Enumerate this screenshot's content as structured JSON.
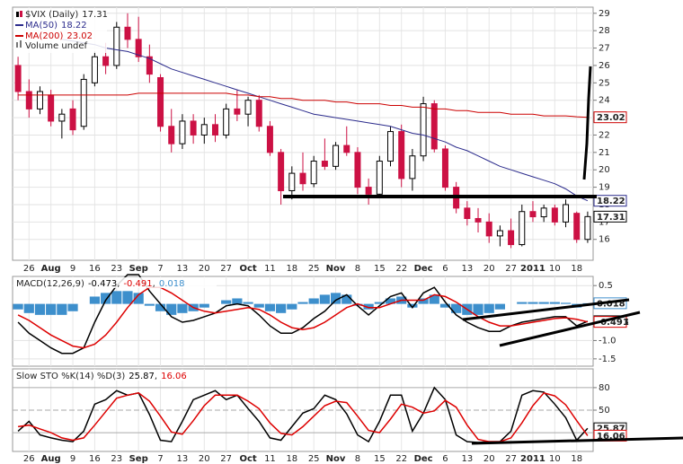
{
  "chart_data": [
    {
      "type": "candlestick",
      "title": "$VIX (Daily)",
      "last_label": "17.31",
      "volume_label": "Volume undef",
      "categories": [
        null,
        "26",
        null,
        "Aug",
        null,
        "9",
        null,
        "16",
        null,
        "23",
        null,
        "Sep",
        null,
        "7",
        null,
        "13",
        null,
        "20",
        null,
        "27",
        null,
        "Oct",
        null,
        "11",
        null,
        "18",
        null,
        "25",
        null,
        "Nov",
        null,
        "8",
        null,
        "15",
        null,
        "22",
        null,
        "Dec",
        null,
        "6",
        null,
        "13",
        null,
        "20",
        null,
        "27",
        null,
        "2011",
        null,
        "10",
        null,
        "18",
        null
      ],
      "open": [
        26.0,
        24.5,
        23.5,
        24.3,
        22.8,
        23.5,
        22.5,
        25.0,
        26.5,
        26.0,
        28.2,
        27.5,
        26.5,
        25.3,
        22.5,
        21.5,
        22.8,
        22.0,
        22.6,
        22.0,
        23.5,
        23.2,
        24.0,
        22.5,
        21.0,
        18.8,
        19.8,
        19.2,
        20.5,
        20.2,
        21.4,
        21.0,
        19.0,
        18.6,
        20.5,
        22.2,
        19.5,
        20.8,
        23.8,
        21.2,
        19.0,
        17.8,
        17.2,
        17.0,
        16.2,
        16.5,
        15.7,
        17.6,
        17.3,
        17.8,
        17.0,
        17.5,
        16.0
      ],
      "high": [
        26.5,
        25.2,
        24.8,
        24.6,
        23.5,
        24.0,
        25.5,
        26.8,
        27.3,
        28.5,
        29.0,
        28.8,
        27.2,
        25.5,
        23.5,
        23.2,
        23.2,
        23.0,
        23.2,
        23.8,
        24.6,
        24.2,
        24.3,
        22.8,
        21.2,
        20.2,
        21.0,
        20.8,
        21.8,
        21.6,
        22.5,
        21.3,
        19.5,
        20.8,
        22.5,
        22.6,
        21.2,
        24.2,
        24.0,
        21.4,
        19.3,
        18.2,
        17.8,
        17.5,
        16.8,
        17.2,
        18.0,
        18.2,
        18.0,
        18.0,
        18.3,
        17.6,
        17.6
      ],
      "low": [
        24.0,
        23.0,
        23.2,
        22.5,
        21.8,
        22.0,
        22.3,
        24.8,
        25.5,
        25.8,
        27.0,
        26.2,
        25.0,
        22.2,
        21.0,
        21.2,
        21.5,
        21.5,
        21.6,
        21.8,
        22.8,
        22.5,
        22.2,
        20.8,
        18.0,
        18.3,
        18.8,
        19.0,
        20.0,
        20.0,
        20.8,
        18.6,
        18.0,
        18.5,
        20.2,
        19.0,
        18.8,
        20.5,
        21.0,
        18.8,
        17.5,
        16.8,
        16.4,
        15.8,
        15.6,
        15.5,
        15.6,
        17.0,
        17.0,
        16.8,
        16.7,
        15.8,
        15.8
      ],
      "close": [
        24.5,
        23.5,
        24.5,
        22.8,
        23.2,
        22.3,
        25.2,
        26.5,
        26.0,
        28.2,
        27.5,
        26.5,
        25.5,
        22.5,
        21.5,
        22.8,
        22.0,
        22.6,
        22.0,
        23.5,
        23.2,
        24.0,
        22.5,
        21.0,
        18.8,
        19.8,
        19.2,
        20.5,
        20.2,
        21.4,
        21.0,
        19.0,
        18.6,
        20.5,
        22.2,
        19.5,
        20.8,
        23.8,
        21.2,
        19.0,
        17.8,
        17.2,
        17.0,
        16.2,
        16.5,
        15.7,
        17.6,
        17.3,
        17.8,
        17.0,
        18.0,
        16.0,
        17.31
      ],
      "up_color": "#000000",
      "down_color": "#cc1144",
      "series": [
        {
          "name": "MA(50)",
          "last_label": "18.22",
          "color": "#2b2b8c",
          "values": [
            null,
            null,
            null,
            null,
            27.5,
            27.4,
            27.3,
            27.2,
            27.0,
            26.9,
            26.8,
            26.6,
            26.4,
            26.1,
            25.8,
            25.6,
            25.4,
            25.2,
            25.0,
            24.8,
            24.6,
            24.4,
            24.2,
            24.0,
            23.8,
            23.6,
            23.4,
            23.2,
            23.1,
            23.0,
            22.9,
            22.8,
            22.7,
            22.6,
            22.5,
            22.3,
            22.1,
            22.0,
            21.8,
            21.6,
            21.3,
            21.1,
            20.8,
            20.5,
            20.2,
            20.0,
            19.8,
            19.6,
            19.4,
            19.2,
            18.9,
            18.5,
            18.22
          ]
        },
        {
          "name": "MA(200)",
          "last_label": "23.02",
          "color": "#cc0000",
          "values": [
            24.3,
            24.3,
            24.3,
            24.3,
            24.3,
            24.3,
            24.3,
            24.3,
            24.3,
            24.3,
            24.3,
            24.4,
            24.4,
            24.4,
            24.4,
            24.4,
            24.4,
            24.4,
            24.4,
            24.4,
            24.3,
            24.3,
            24.2,
            24.2,
            24.1,
            24.1,
            24.0,
            24.0,
            24.0,
            23.9,
            23.9,
            23.8,
            23.8,
            23.8,
            23.7,
            23.7,
            23.6,
            23.6,
            23.5,
            23.5,
            23.4,
            23.4,
            23.3,
            23.3,
            23.3,
            23.2,
            23.2,
            23.2,
            23.1,
            23.1,
            23.1,
            23.05,
            23.02
          ]
        }
      ],
      "ylim": [
        14.8,
        29.35
      ],
      "yticks": [
        16,
        17,
        18,
        19,
        20,
        21,
        22,
        23,
        24,
        25,
        26,
        27,
        28,
        29
      ],
      "grid": true
    },
    {
      "type": "combo",
      "title": "MACD(12,26,9)",
      "separator": ",",
      "series": [
        {
          "kind": "line",
          "color": "#000000",
          "last_label": "-0.473",
          "values": [
            -0.5,
            -0.8,
            -1.0,
            -1.2,
            -1.35,
            -1.35,
            -1.2,
            -0.5,
            0.1,
            0.5,
            0.8,
            0.8,
            0.35,
            0.0,
            -0.35,
            -0.5,
            -0.45,
            -0.35,
            -0.25,
            -0.05,
            0.0,
            -0.05,
            -0.3,
            -0.6,
            -0.8,
            -0.8,
            -0.65,
            -0.4,
            -0.2,
            0.1,
            0.25,
            -0.05,
            -0.3,
            -0.05,
            0.2,
            0.3,
            -0.1,
            0.3,
            0.45,
            0.05,
            -0.3,
            -0.5,
            -0.65,
            -0.75,
            -0.75,
            -0.6,
            -0.5,
            -0.45,
            -0.4,
            -0.35,
            -0.35,
            -0.6,
            -0.473
          ]
        },
        {
          "kind": "line",
          "color": "#dd0000",
          "last_label": "-0.491",
          "values": [
            -0.3,
            -0.45,
            -0.65,
            -0.85,
            -1.0,
            -1.15,
            -1.2,
            -1.1,
            -0.85,
            -0.5,
            -0.1,
            0.25,
            0.45,
            0.45,
            0.3,
            0.1,
            -0.1,
            -0.2,
            -0.25,
            -0.2,
            -0.15,
            -0.1,
            -0.15,
            -0.3,
            -0.5,
            -0.65,
            -0.7,
            -0.65,
            -0.5,
            -0.3,
            -0.1,
            0.0,
            -0.1,
            -0.1,
            0.0,
            0.1,
            0.1,
            0.1,
            0.25,
            0.2,
            0.05,
            -0.15,
            -0.35,
            -0.5,
            -0.6,
            -0.6,
            -0.55,
            -0.5,
            -0.45,
            -0.4,
            -0.38,
            -0.42,
            -0.491
          ]
        },
        {
          "kind": "bar",
          "color": "#3d8fcc",
          "last_label": "0.018",
          "values": [
            -0.15,
            -0.25,
            -0.3,
            -0.3,
            -0.3,
            -0.2,
            0.0,
            0.2,
            0.3,
            0.35,
            0.35,
            0.3,
            -0.05,
            -0.2,
            -0.3,
            -0.25,
            -0.2,
            -0.1,
            0.0,
            0.1,
            0.15,
            0.05,
            -0.1,
            -0.2,
            -0.25,
            -0.15,
            0.05,
            0.15,
            0.25,
            0.3,
            0.25,
            -0.05,
            -0.15,
            0.05,
            0.15,
            0.2,
            -0.1,
            0.15,
            0.25,
            -0.1,
            -0.25,
            -0.3,
            -0.3,
            -0.25,
            -0.15,
            0.0,
            0.05,
            0.05,
            0.05,
            0.05,
            0.03,
            -0.1,
            0.018
          ]
        }
      ],
      "ylim": [
        -1.7,
        0.75
      ],
      "yticks": [
        0.5,
        {
          "value": -1,
          "label": "-1.0"
        },
        -1.5
      ],
      "grid": true
    },
    {
      "type": "line",
      "title": "Slow STO %K(14) %D(3)",
      "separator": ",",
      "categories": [
        null,
        "26",
        null,
        "Aug",
        null,
        "9",
        null,
        "16",
        null,
        "23",
        null,
        "Sep",
        null,
        "7",
        null,
        "13",
        null,
        "20",
        null,
        "27",
        null,
        "Oct",
        null,
        "11",
        null,
        "18",
        null,
        "25",
        null,
        "Nov",
        null,
        "8",
        null,
        "15",
        null,
        "22",
        null,
        "Dec",
        null,
        "6",
        null,
        "13",
        null,
        "20",
        null,
        "27",
        null,
        "2011",
        null,
        "10",
        null,
        "18",
        null
      ],
      "series": [
        {
          "color": "#000000",
          "last_label": "25.87",
          "values": [
            22,
            35,
            17,
            13,
            10,
            8,
            22,
            58,
            64,
            76,
            70,
            73,
            44,
            10,
            8,
            35,
            64,
            70,
            76,
            64,
            70,
            52,
            35,
            13,
            10,
            28,
            46,
            52,
            70,
            64,
            45,
            17,
            8,
            35,
            70,
            70,
            22,
            46,
            80,
            64,
            17,
            8,
            7,
            8,
            8,
            22,
            70,
            76,
            74,
            58,
            40,
            10,
            25.87
          ]
        },
        {
          "color": "#dd0000",
          "last_label": "16.06",
          "values": [
            28,
            30,
            25,
            20,
            13,
            10,
            13,
            30,
            48,
            66,
            70,
            73,
            62,
            42,
            21,
            18,
            36,
            56,
            70,
            70,
            70,
            62,
            52,
            33,
            19,
            17,
            28,
            42,
            56,
            62,
            60,
            42,
            23,
            20,
            38,
            58,
            54,
            46,
            49,
            63,
            54,
            30,
            11,
            8,
            8,
            13,
            33,
            56,
            73,
            69,
            57,
            36,
            16.06
          ]
        }
      ],
      "ylim": [
        -5,
        105
      ],
      "yticks": [
        20,
        50,
        80
      ],
      "grid": true
    }
  ]
}
